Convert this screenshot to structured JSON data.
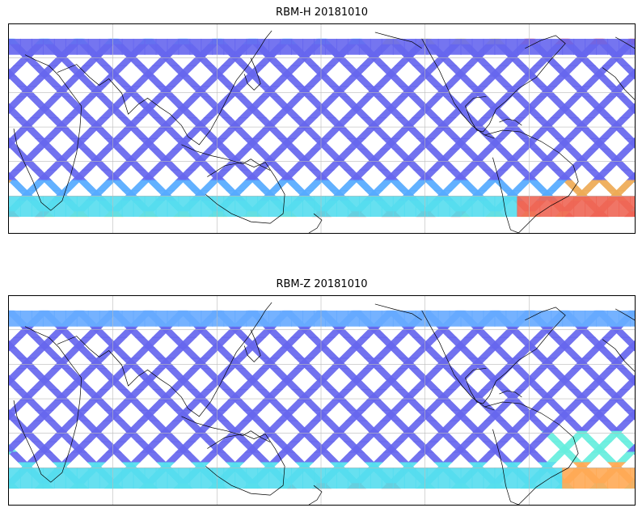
{
  "panels": [
    {
      "id": "rbm-h",
      "title": "RBM-H 20181010",
      "variable": "RBM-H",
      "date": "20181010"
    },
    {
      "id": "rbm-z",
      "title": "RBM-Z 20181010",
      "variable": "RBM-Z",
      "date": "20181010"
    }
  ],
  "map": {
    "projection": "equirectangular",
    "central_longitude": 160,
    "lat_range": [
      -60,
      60
    ],
    "gridlines": true,
    "colormap": "jet"
  },
  "colors": {
    "low": "#5555ee",
    "mid_low": "#55aaff",
    "mid": "#66eedd",
    "mid_high": "#eeee55",
    "high": "#ee4444",
    "coastline": "#000000",
    "gridline": "#bbbbbb"
  }
}
